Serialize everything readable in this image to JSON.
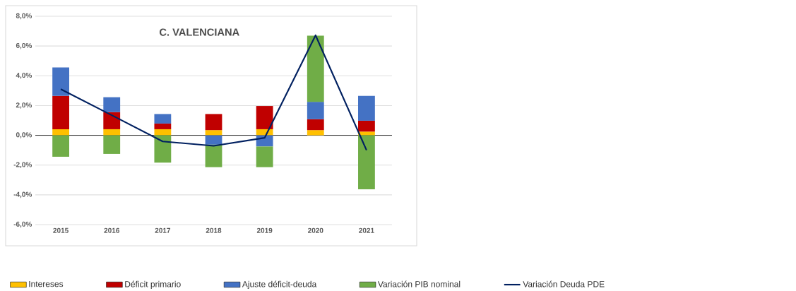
{
  "chart_data": {
    "type": "bar",
    "title": "C. VALENCIANA",
    "stacked": true,
    "categories": [
      "2015",
      "2016",
      "2017",
      "2018",
      "2019",
      "2020",
      "2021"
    ],
    "series": [
      {
        "name": "Intereses",
        "color": "#ffc000",
        "values": [
          0.41,
          0.41,
          0.41,
          0.35,
          0.41,
          0.35,
          0.25
        ]
      },
      {
        "name": "Déficit primario",
        "color": "#c00000",
        "values": [
          2.24,
          1.15,
          0.38,
          1.08,
          1.56,
          0.73,
          0.73
        ]
      },
      {
        "name": "Ajuste déficit-deuda",
        "color": "#4472c4",
        "values": [
          1.91,
          1.0,
          0.64,
          -0.63,
          -0.75,
          1.17,
          1.67
        ]
      },
      {
        "name": "Variación PIB nominal",
        "color": "#70ad47",
        "values": [
          -1.44,
          -1.25,
          -1.83,
          -1.51,
          -1.39,
          4.45,
          -3.63
        ]
      },
      {
        "name": "Variación Deuda PDE",
        "color": "#002060",
        "type": "line",
        "values": [
          3.1,
          1.35,
          -0.41,
          -0.71,
          -0.17,
          6.72,
          -1.0
        ]
      }
    ],
    "ylim": [
      -6,
      8
    ],
    "yticks": [
      {
        "value": -6,
        "label": "-6,0%"
      },
      {
        "value": -4,
        "label": "-4,0%"
      },
      {
        "value": -2,
        "label": "-2,0%"
      },
      {
        "value": 0,
        "label": "0,0%"
      },
      {
        "value": 2,
        "label": "2,0%"
      },
      {
        "value": 4,
        "label": "4,0%"
      },
      {
        "value": 6,
        "label": "6,0%"
      },
      {
        "value": 8,
        "label": "8,0%"
      }
    ],
    "grid": "y",
    "legend": "bottom"
  }
}
